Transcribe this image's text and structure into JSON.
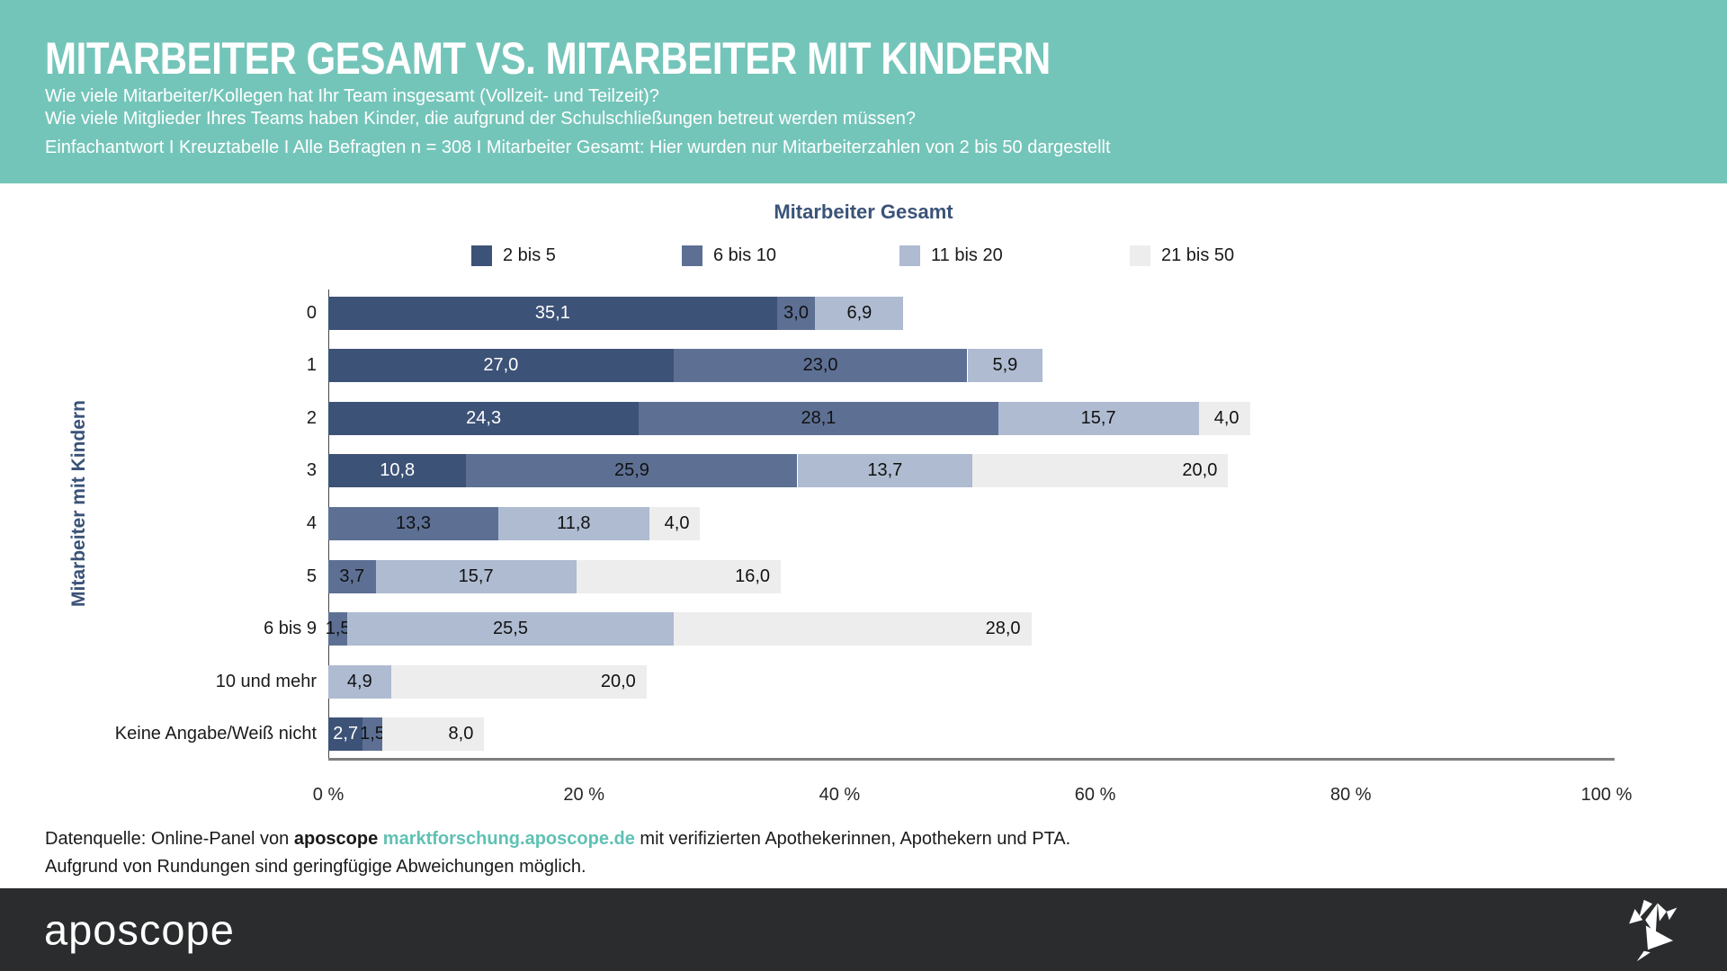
{
  "colors": {
    "header_bg": "#74c5b9",
    "accent_navy": "#3a5378",
    "link_teal": "#5fc1b4",
    "footer_bar_bg": "#2a2c2d",
    "axis_line": "#7f7f7f",
    "series": [
      "#3d5277",
      "#5d7094",
      "#aebbd1",
      "#ededed"
    ]
  },
  "header": {
    "title": "MITARBEITER GESAMT VS. MITARBEITER MIT KINDERN",
    "subtitle1": "Wie viele Mitarbeiter/Kollegen hat Ihr Team insgesamt (Vollzeit- und Teilzeit)?",
    "subtitle2": "Wie viele Mitglieder Ihres Teams haben Kinder, die aufgrund der Schulschließungen betreut werden müssen?",
    "meta": "Einfachantwort I Kreuztabelle I Alle Befragten n = 308 I Mitarbeiter Gesamt: Hier wurden nur Mitarbeiterzahlen von 2 bis 50 dargestellt"
  },
  "chart_data": {
    "type": "bar",
    "orientation": "horizontal",
    "stacked": true,
    "grid": false,
    "legend_position": "top",
    "legend_title": "Mitarbeiter Gesamt",
    "ylabel": "Mitarbeiter mit Kindern",
    "xlim": [
      0,
      100
    ],
    "x_tick_labels": [
      "0 %",
      "20 %",
      "40 %",
      "60 %",
      "80 %",
      "100 %"
    ],
    "series_names": [
      "2 bis 5",
      "6 bis 10",
      "11 bis 20",
      "21 bis 50"
    ],
    "categories": [
      "0",
      "1",
      "2",
      "3",
      "4",
      "5",
      "6 bis 9",
      "10 und mehr",
      "Keine Angabe/Weiß nicht"
    ],
    "series": [
      {
        "name": "2 bis 5",
        "values": [
          35.1,
          27.0,
          24.3,
          10.8,
          null,
          null,
          null,
          null,
          2.7
        ]
      },
      {
        "name": "6 bis 10",
        "values": [
          3.0,
          23.0,
          28.1,
          25.9,
          13.3,
          3.7,
          1.5,
          null,
          1.5
        ]
      },
      {
        "name": "11 bis 20",
        "values": [
          6.9,
          5.9,
          15.7,
          13.7,
          11.8,
          15.7,
          25.5,
          4.9,
          null
        ]
      },
      {
        "name": "21 bis 50",
        "values": [
          null,
          null,
          4.0,
          20.0,
          4.0,
          16.0,
          28.0,
          20.0,
          8.0
        ]
      }
    ],
    "rows": [
      {
        "label": "0",
        "segments": [
          {
            "series_index": 0,
            "value": 35.1,
            "display": "35,1"
          },
          {
            "series_index": 1,
            "value": 3.0,
            "display": "3,0"
          },
          {
            "series_index": 2,
            "value": 6.9,
            "display": "6,9"
          }
        ]
      },
      {
        "label": "1",
        "segments": [
          {
            "series_index": 0,
            "value": 27.0,
            "display": "27,0"
          },
          {
            "series_index": 1,
            "value": 23.0,
            "display": "23,0"
          },
          {
            "series_index": 2,
            "value": 5.9,
            "display": "5,9"
          }
        ]
      },
      {
        "label": "2",
        "segments": [
          {
            "series_index": 0,
            "value": 24.3,
            "display": "24,3"
          },
          {
            "series_index": 1,
            "value": 28.1,
            "display": "28,1"
          },
          {
            "series_index": 2,
            "value": 15.7,
            "display": "15,7"
          },
          {
            "series_index": 3,
            "value": 4.0,
            "display": "4,0"
          }
        ]
      },
      {
        "label": "3",
        "segments": [
          {
            "series_index": 0,
            "value": 10.8,
            "display": "10,8"
          },
          {
            "series_index": 1,
            "value": 25.9,
            "display": "25,9"
          },
          {
            "series_index": 2,
            "value": 13.7,
            "display": "13,7"
          },
          {
            "series_index": 3,
            "value": 20.0,
            "display": "20,0"
          }
        ]
      },
      {
        "label": "4",
        "segments": [
          {
            "series_index": 1,
            "value": 13.3,
            "display": "13,3"
          },
          {
            "series_index": 2,
            "value": 11.8,
            "display": "11,8"
          },
          {
            "series_index": 3,
            "value": 4.0,
            "display": "4,0"
          }
        ]
      },
      {
        "label": "5",
        "segments": [
          {
            "series_index": 1,
            "value": 3.7,
            "display": "3,7"
          },
          {
            "series_index": 2,
            "value": 15.7,
            "display": "15,7"
          },
          {
            "series_index": 3,
            "value": 16.0,
            "display": "16,0"
          }
        ]
      },
      {
        "label": "6 bis 9",
        "segments": [
          {
            "series_index": 1,
            "value": 1.5,
            "display": "1,5"
          },
          {
            "series_index": 2,
            "value": 25.5,
            "display": "25,5"
          },
          {
            "series_index": 3,
            "value": 28.0,
            "display": "28,0"
          }
        ]
      },
      {
        "label": "10 und mehr",
        "segments": [
          {
            "series_index": 2,
            "value": 4.9,
            "display": "4,9"
          },
          {
            "series_index": 3,
            "value": 20.0,
            "display": "20,0"
          }
        ]
      },
      {
        "label": "Keine Angabe/Weiß nicht",
        "segments": [
          {
            "series_index": 0,
            "value": 2.7,
            "display": "2,7"
          },
          {
            "series_index": 1,
            "value": 1.5,
            "display": "1,5"
          },
          {
            "series_index": 3,
            "value": 8.0,
            "display": "8,0"
          }
        ]
      }
    ]
  },
  "footer": {
    "line1_prefix": "Datenquelle: Online-Panel von",
    "line1_brand": "aposcope",
    "line1_link": "marktforschung.aposcope.de",
    "line1_suffix": "mit verifizierten Apothekerinnen, Apothekern und PTA.",
    "line2": "Aufgrund von Rundungen sind geringfügige Abweichungen möglich."
  },
  "brandbar": {
    "logo_text": "aposcope"
  }
}
